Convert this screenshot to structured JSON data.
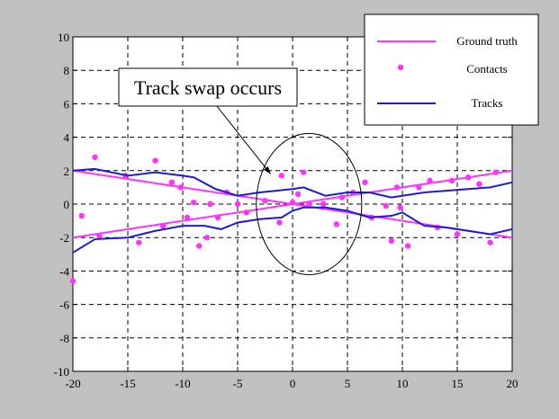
{
  "chart_data": {
    "type": "scatter",
    "title": "",
    "xlabel": "",
    "ylabel": "",
    "xlim": [
      -20,
      20
    ],
    "ylim": [
      -10,
      10
    ],
    "xticks": [
      -20,
      -15,
      -10,
      -5,
      0,
      5,
      10,
      15,
      20
    ],
    "yticks": [
      -10,
      -8,
      -6,
      -4,
      -2,
      0,
      2,
      4,
      6,
      8,
      10
    ],
    "grid": true,
    "legend_position": "top-right",
    "legend": [
      {
        "label": "Ground truth",
        "style": "line",
        "color": "#ff33ff"
      },
      {
        "label": "Contacts",
        "style": "dot",
        "color": "#ff33ff"
      },
      {
        "label": "Tracks",
        "style": "line",
        "color": "#1c1cd6"
      }
    ],
    "annotations": [
      {
        "text": "Track swap occurs",
        "arrow_to": [
          -2,
          1.8
        ]
      }
    ],
    "highlight_circle": {
      "center": [
        1.5,
        0
      ],
      "radius": 4.8
    },
    "series": [
      {
        "name": "Ground truth",
        "kind": "line",
        "color": "#ff33ff",
        "x": [
          -20,
          20
        ],
        "y": [
          2,
          -2
        ]
      },
      {
        "name": "Ground truth",
        "kind": "line",
        "color": "#ff33ff",
        "x": [
          -20,
          20
        ],
        "y": [
          -2,
          2
        ]
      },
      {
        "name": "Contacts",
        "kind": "scatter",
        "color": "#ff33ff",
        "x": [
          -20,
          -19.2,
          -18,
          -17.6,
          -15.2,
          -14,
          -12.5,
          -11.8,
          -11,
          -10.2,
          -9.6,
          -9,
          -8.5,
          -7.8,
          -7.5,
          -6.8,
          -6,
          -5,
          -4.2,
          -2.5,
          -1.2,
          -1,
          0,
          0.5,
          1,
          1.5,
          2.8,
          4,
          4.5,
          5.5,
          6.6,
          7.2,
          8.5,
          9,
          9.5,
          9.8,
          10.5,
          11.5,
          12.5,
          13.2,
          14.5,
          15,
          16,
          17,
          18,
          18.5
        ],
        "y": [
          -4.6,
          -0.7,
          2.8,
          -1.9,
          1.7,
          -2.3,
          2.6,
          -1.3,
          1.3,
          1.0,
          -0.8,
          0.1,
          -2.5,
          -2.0,
          0.0,
          -0.8,
          0.7,
          0.0,
          -0.5,
          0.2,
          -1.1,
          1.7,
          0.1,
          0.6,
          1.9,
          0.0,
          0.0,
          -1.2,
          0.4,
          0.7,
          1.3,
          -0.8,
          -0.1,
          -2.2,
          1.0,
          -0.2,
          -2.5,
          1.0,
          1.4,
          -1.4,
          1.4,
          -1.8,
          1.6,
          1.2,
          -2.3,
          1.9
        ]
      },
      {
        "name": "Tracks",
        "kind": "line",
        "color": "#1c1cd6",
        "x": [
          -20,
          -18,
          -15,
          -12.5,
          -10,
          -9,
          -7,
          -5,
          -3,
          0,
          1,
          3,
          5,
          7,
          9,
          10,
          12,
          14,
          16,
          18,
          20
        ],
        "y": [
          2.0,
          2.1,
          1.7,
          1.9,
          1.7,
          1.6,
          0.9,
          0.5,
          0.7,
          0.9,
          1.0,
          0.5,
          0.7,
          0.7,
          0.4,
          0.5,
          0.7,
          0.8,
          0.9,
          1.0,
          1.3
        ]
      },
      {
        "name": "Tracks",
        "kind": "line",
        "color": "#1c1cd6",
        "x": [
          -20,
          -18,
          -15,
          -12.5,
          -10,
          -8,
          -6.5,
          -5,
          -3,
          -1,
          0,
          1,
          3,
          5,
          7,
          9,
          10,
          12,
          14,
          16,
          18,
          20
        ],
        "y": [
          -2.9,
          -2.1,
          -2.0,
          -1.6,
          -1.3,
          -1.3,
          -1.5,
          -1.1,
          -0.9,
          -0.8,
          -0.4,
          -0.2,
          -0.2,
          -0.4,
          -0.8,
          -0.7,
          -0.5,
          -1.3,
          -1.4,
          -1.6,
          -1.8,
          -1.5
        ]
      }
    ]
  }
}
